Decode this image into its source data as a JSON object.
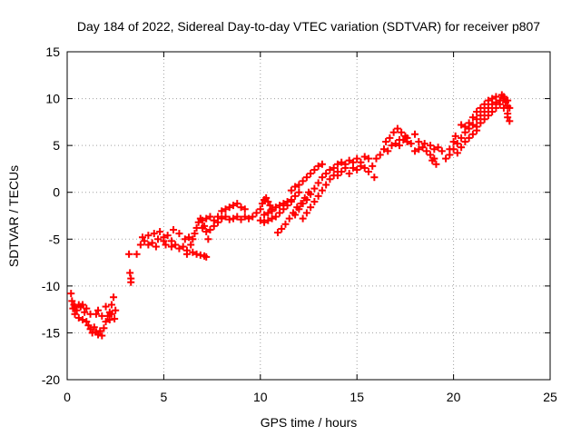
{
  "chart_data": {
    "type": "scatter",
    "title": "Day 184 of 2022, Sidereal Day-to-day VTEC variation (SDTVAR) for receiver p807",
    "xlabel": "GPS time / hours",
    "ylabel": "SDTVAR / TECUs",
    "xlim": [
      0,
      25
    ],
    "ylim": [
      -20,
      15
    ],
    "xticks": [
      "0",
      "5",
      "10",
      "15",
      "20",
      "25"
    ],
    "yticks": [
      "-20",
      "-15",
      "-10",
      "-5",
      "0",
      "5",
      "10",
      "15"
    ],
    "grid": true,
    "marker": "plus",
    "color": "#ff0000",
    "series": [
      {
        "points": [
          [
            0.2,
            -10.8
          ],
          [
            0.25,
            -11.6
          ],
          [
            0.3,
            -12.4
          ],
          [
            0.35,
            -12.0
          ],
          [
            0.4,
            -13.0
          ],
          [
            0.5,
            -12.6
          ],
          [
            0.6,
            -13.4
          ],
          [
            0.7,
            -12.2
          ],
          [
            0.8,
            -13.6
          ],
          [
            0.9,
            -12.8
          ],
          [
            1.0,
            -13.8
          ],
          [
            1.1,
            -14.2
          ],
          [
            1.2,
            -14.6
          ],
          [
            1.3,
            -15.0
          ],
          [
            1.4,
            -14.4
          ],
          [
            1.5,
            -14.9
          ],
          [
            1.6,
            -15.2
          ],
          [
            1.7,
            -14.8
          ],
          [
            1.8,
            -15.3
          ],
          [
            1.9,
            -14.5
          ],
          [
            2.0,
            -13.8
          ],
          [
            2.1,
            -13.2
          ],
          [
            2.2,
            -12.8
          ],
          [
            2.3,
            -12.0
          ],
          [
            2.4,
            -11.2
          ],
          [
            2.45,
            -13.5
          ],
          [
            2.5,
            -12.6
          ],
          [
            0.6,
            -12.0
          ],
          [
            1.0,
            -12.4
          ],
          [
            1.5,
            -13.0
          ],
          [
            2.0,
            -12.2
          ],
          [
            2.2,
            -13.6
          ],
          [
            1.8,
            -13.2
          ],
          [
            1.2,
            -13.0
          ],
          [
            0.8,
            -12.0
          ],
          [
            0.4,
            -12.2
          ],
          [
            1.6,
            -12.6
          ],
          [
            2.3,
            -13.0
          ],
          [
            3.2,
            -6.6
          ],
          [
            3.25,
            -8.6
          ],
          [
            3.3,
            -9.2
          ],
          [
            3.3,
            -9.6
          ],
          [
            3.6,
            -6.6
          ],
          [
            3.8,
            -5.6
          ],
          [
            3.9,
            -4.8
          ],
          [
            4.0,
            -5.2
          ],
          [
            4.2,
            -4.6
          ],
          [
            4.4,
            -5.4
          ],
          [
            4.5,
            -4.4
          ],
          [
            4.7,
            -5.0
          ],
          [
            4.8,
            -4.2
          ],
          [
            5.0,
            -4.8
          ],
          [
            5.1,
            -5.6
          ],
          [
            5.2,
            -4.6
          ],
          [
            5.4,
            -5.2
          ],
          [
            5.5,
            -4.0
          ],
          [
            5.6,
            -5.6
          ],
          [
            5.8,
            -4.4
          ],
          [
            6.0,
            -5.8
          ],
          [
            6.1,
            -5.0
          ],
          [
            6.2,
            -6.2
          ],
          [
            6.3,
            -4.8
          ],
          [
            4.2,
            -5.6
          ],
          [
            4.6,
            -5.8
          ],
          [
            5.0,
            -5.2
          ],
          [
            5.4,
            -5.8
          ],
          [
            5.8,
            -6.0
          ],
          [
            6.2,
            -6.6
          ],
          [
            6.5,
            -6.4
          ],
          [
            6.7,
            -6.6
          ],
          [
            6.9,
            -6.7
          ],
          [
            7.1,
            -6.8
          ],
          [
            7.2,
            -6.9
          ],
          [
            6.4,
            -5.6
          ],
          [
            6.5,
            -5.0
          ],
          [
            6.6,
            -4.4
          ],
          [
            6.7,
            -3.8
          ],
          [
            6.8,
            -3.2
          ],
          [
            6.9,
            -2.8
          ],
          [
            7.0,
            -3.0
          ],
          [
            7.1,
            -3.6
          ],
          [
            7.2,
            -4.2
          ],
          [
            7.3,
            -5.0
          ],
          [
            7.0,
            -3.8
          ],
          [
            7.2,
            -2.8
          ],
          [
            7.4,
            -2.6
          ],
          [
            7.6,
            -3.0
          ],
          [
            7.8,
            -2.6
          ],
          [
            8.0,
            -2.0
          ],
          [
            8.2,
            -1.8
          ],
          [
            8.4,
            -1.6
          ],
          [
            8.6,
            -1.4
          ],
          [
            8.8,
            -1.2
          ],
          [
            9.0,
            -1.6
          ],
          [
            9.2,
            -1.8
          ],
          [
            7.4,
            -4.0
          ],
          [
            7.6,
            -3.6
          ],
          [
            7.8,
            -3.2
          ],
          [
            8.0,
            -2.8
          ],
          [
            8.2,
            -2.6
          ],
          [
            8.4,
            -2.9
          ],
          [
            8.6,
            -2.8
          ],
          [
            8.8,
            -2.6
          ],
          [
            9.0,
            -2.9
          ],
          [
            9.2,
            -2.6
          ],
          [
            9.4,
            -2.8
          ],
          [
            9.6,
            -2.6
          ],
          [
            9.8,
            -2.2
          ],
          [
            10.0,
            -1.8
          ],
          [
            10.1,
            -1.2
          ],
          [
            10.2,
            -0.8
          ],
          [
            10.3,
            -0.6
          ],
          [
            10.4,
            -1.0
          ],
          [
            10.5,
            -1.4
          ],
          [
            10.6,
            -1.8
          ],
          [
            10.2,
            -2.4
          ],
          [
            10.4,
            -2.2
          ],
          [
            10.6,
            -2.0
          ],
          [
            10.8,
            -1.6
          ],
          [
            11.0,
            -1.4
          ],
          [
            11.2,
            -1.2
          ],
          [
            11.4,
            -1.0
          ],
          [
            11.6,
            -0.8
          ],
          [
            11.8,
            -0.4
          ],
          [
            12.0,
            0.0
          ],
          [
            10.0,
            -3.0
          ],
          [
            10.2,
            -3.2
          ],
          [
            10.4,
            -3.0
          ],
          [
            10.6,
            -2.8
          ],
          [
            10.8,
            -2.6
          ],
          [
            11.0,
            -2.2
          ],
          [
            11.2,
            -1.8
          ],
          [
            11.4,
            -1.4
          ],
          [
            11.6,
            -1.0
          ],
          [
            10.9,
            -4.3
          ],
          [
            11.1,
            -3.9
          ],
          [
            11.3,
            -3.4
          ],
          [
            11.5,
            -2.8
          ],
          [
            11.7,
            -2.2
          ],
          [
            11.9,
            -1.6
          ],
          [
            12.1,
            -1.2
          ],
          [
            12.3,
            -0.6
          ],
          [
            12.5,
            0.0
          ],
          [
            11.8,
            -2.4
          ],
          [
            12.0,
            -1.8
          ],
          [
            12.2,
            -1.2
          ],
          [
            12.4,
            -0.8
          ],
          [
            12.6,
            -0.2
          ],
          [
            12.8,
            0.4
          ],
          [
            13.0,
            1.0
          ],
          [
            13.2,
            1.6
          ],
          [
            13.4,
            2.0
          ],
          [
            13.6,
            2.4
          ],
          [
            12.2,
            -2.8
          ],
          [
            12.4,
            -2.2
          ],
          [
            12.6,
            -1.6
          ],
          [
            12.8,
            -1.0
          ],
          [
            13.0,
            -0.4
          ],
          [
            13.2,
            0.2
          ],
          [
            13.4,
            0.8
          ],
          [
            13.6,
            1.4
          ],
          [
            13.8,
            1.8
          ],
          [
            14.0,
            2.2
          ],
          [
            11.6,
            0.2
          ],
          [
            11.8,
            0.6
          ],
          [
            12.0,
            0.8
          ],
          [
            12.2,
            1.2
          ],
          [
            12.4,
            1.6
          ],
          [
            12.6,
            2.0
          ],
          [
            12.8,
            2.4
          ],
          [
            13.0,
            2.8
          ],
          [
            13.2,
            3.0
          ],
          [
            13.8,
            2.6
          ],
          [
            14.0,
            3.0
          ],
          [
            14.2,
            3.2
          ],
          [
            14.4,
            3.0
          ],
          [
            14.6,
            3.4
          ],
          [
            14.8,
            3.2
          ],
          [
            15.0,
            3.6
          ],
          [
            15.2,
            3.2
          ],
          [
            15.4,
            3.8
          ],
          [
            15.6,
            3.6
          ],
          [
            14.0,
            1.8
          ],
          [
            14.2,
            2.2
          ],
          [
            14.4,
            2.6
          ],
          [
            14.6,
            2.0
          ],
          [
            14.8,
            2.6
          ],
          [
            15.0,
            2.4
          ],
          [
            15.2,
            2.8
          ],
          [
            15.4,
            2.6
          ],
          [
            15.6,
            2.2
          ],
          [
            15.8,
            2.8
          ],
          [
            15.9,
            1.6
          ],
          [
            16.0,
            3.6
          ],
          [
            16.2,
            4.0
          ],
          [
            16.4,
            4.6
          ],
          [
            16.6,
            4.4
          ],
          [
            16.8,
            5.0
          ],
          [
            17.0,
            5.2
          ],
          [
            17.2,
            5.0
          ],
          [
            17.4,
            5.6
          ],
          [
            17.6,
            5.4
          ],
          [
            16.5,
            5.4
          ],
          [
            16.7,
            5.8
          ],
          [
            16.9,
            6.4
          ],
          [
            17.1,
            6.8
          ],
          [
            17.3,
            6.4
          ],
          [
            17.5,
            6.0
          ],
          [
            17.2,
            5.6
          ],
          [
            17.6,
            5.8
          ],
          [
            17.8,
            5.2
          ],
          [
            18.0,
            6.2
          ],
          [
            18.0,
            4.4
          ],
          [
            18.2,
            4.6
          ],
          [
            18.4,
            4.8
          ],
          [
            18.6,
            4.4
          ],
          [
            18.8,
            5.0
          ],
          [
            19.0,
            4.6
          ],
          [
            19.2,
            4.8
          ],
          [
            19.4,
            4.4
          ],
          [
            18.2,
            5.4
          ],
          [
            18.5,
            5.2
          ],
          [
            18.8,
            4.0
          ],
          [
            19.0,
            3.6
          ],
          [
            19.1,
            3.0
          ],
          [
            18.9,
            3.4
          ],
          [
            19.6,
            3.6
          ],
          [
            19.8,
            4.6
          ],
          [
            20.0,
            5.4
          ],
          [
            20.1,
            6.0
          ],
          [
            20.2,
            5.2
          ],
          [
            20.4,
            5.8
          ],
          [
            20.6,
            6.4
          ],
          [
            20.8,
            6.8
          ],
          [
            21.0,
            7.2
          ],
          [
            21.2,
            7.8
          ],
          [
            19.8,
            4.0
          ],
          [
            20.0,
            4.6
          ],
          [
            20.2,
            4.2
          ],
          [
            20.4,
            4.8
          ],
          [
            20.6,
            5.4
          ],
          [
            20.8,
            5.8
          ],
          [
            21.0,
            6.2
          ],
          [
            21.2,
            6.6
          ],
          [
            20.4,
            7.2
          ],
          [
            20.6,
            7.0
          ],
          [
            20.8,
            7.4
          ],
          [
            21.0,
            8.0
          ],
          [
            21.2,
            8.6
          ],
          [
            21.4,
            9.0
          ],
          [
            21.6,
            9.4
          ],
          [
            21.8,
            9.8
          ],
          [
            22.0,
            10.0
          ],
          [
            22.2,
            10.2
          ],
          [
            21.4,
            8.2
          ],
          [
            21.6,
            8.6
          ],
          [
            21.8,
            9.0
          ],
          [
            22.0,
            9.4
          ],
          [
            22.2,
            9.6
          ],
          [
            22.4,
            9.8
          ],
          [
            22.6,
            10.0
          ],
          [
            22.7,
            9.6
          ],
          [
            22.8,
            9.2
          ],
          [
            21.2,
            7.0
          ],
          [
            21.4,
            7.4
          ],
          [
            21.6,
            7.8
          ],
          [
            21.8,
            8.2
          ],
          [
            22.0,
            8.6
          ],
          [
            22.2,
            9.0
          ],
          [
            22.4,
            9.4
          ],
          [
            22.6,
            9.0
          ],
          [
            22.8,
            8.4
          ],
          [
            22.5,
            10.4
          ],
          [
            22.6,
            10.2
          ],
          [
            22.8,
            9.8
          ],
          [
            22.9,
            9.0
          ],
          [
            22.8,
            8.0
          ],
          [
            22.9,
            7.6
          ]
        ]
      }
    ]
  }
}
